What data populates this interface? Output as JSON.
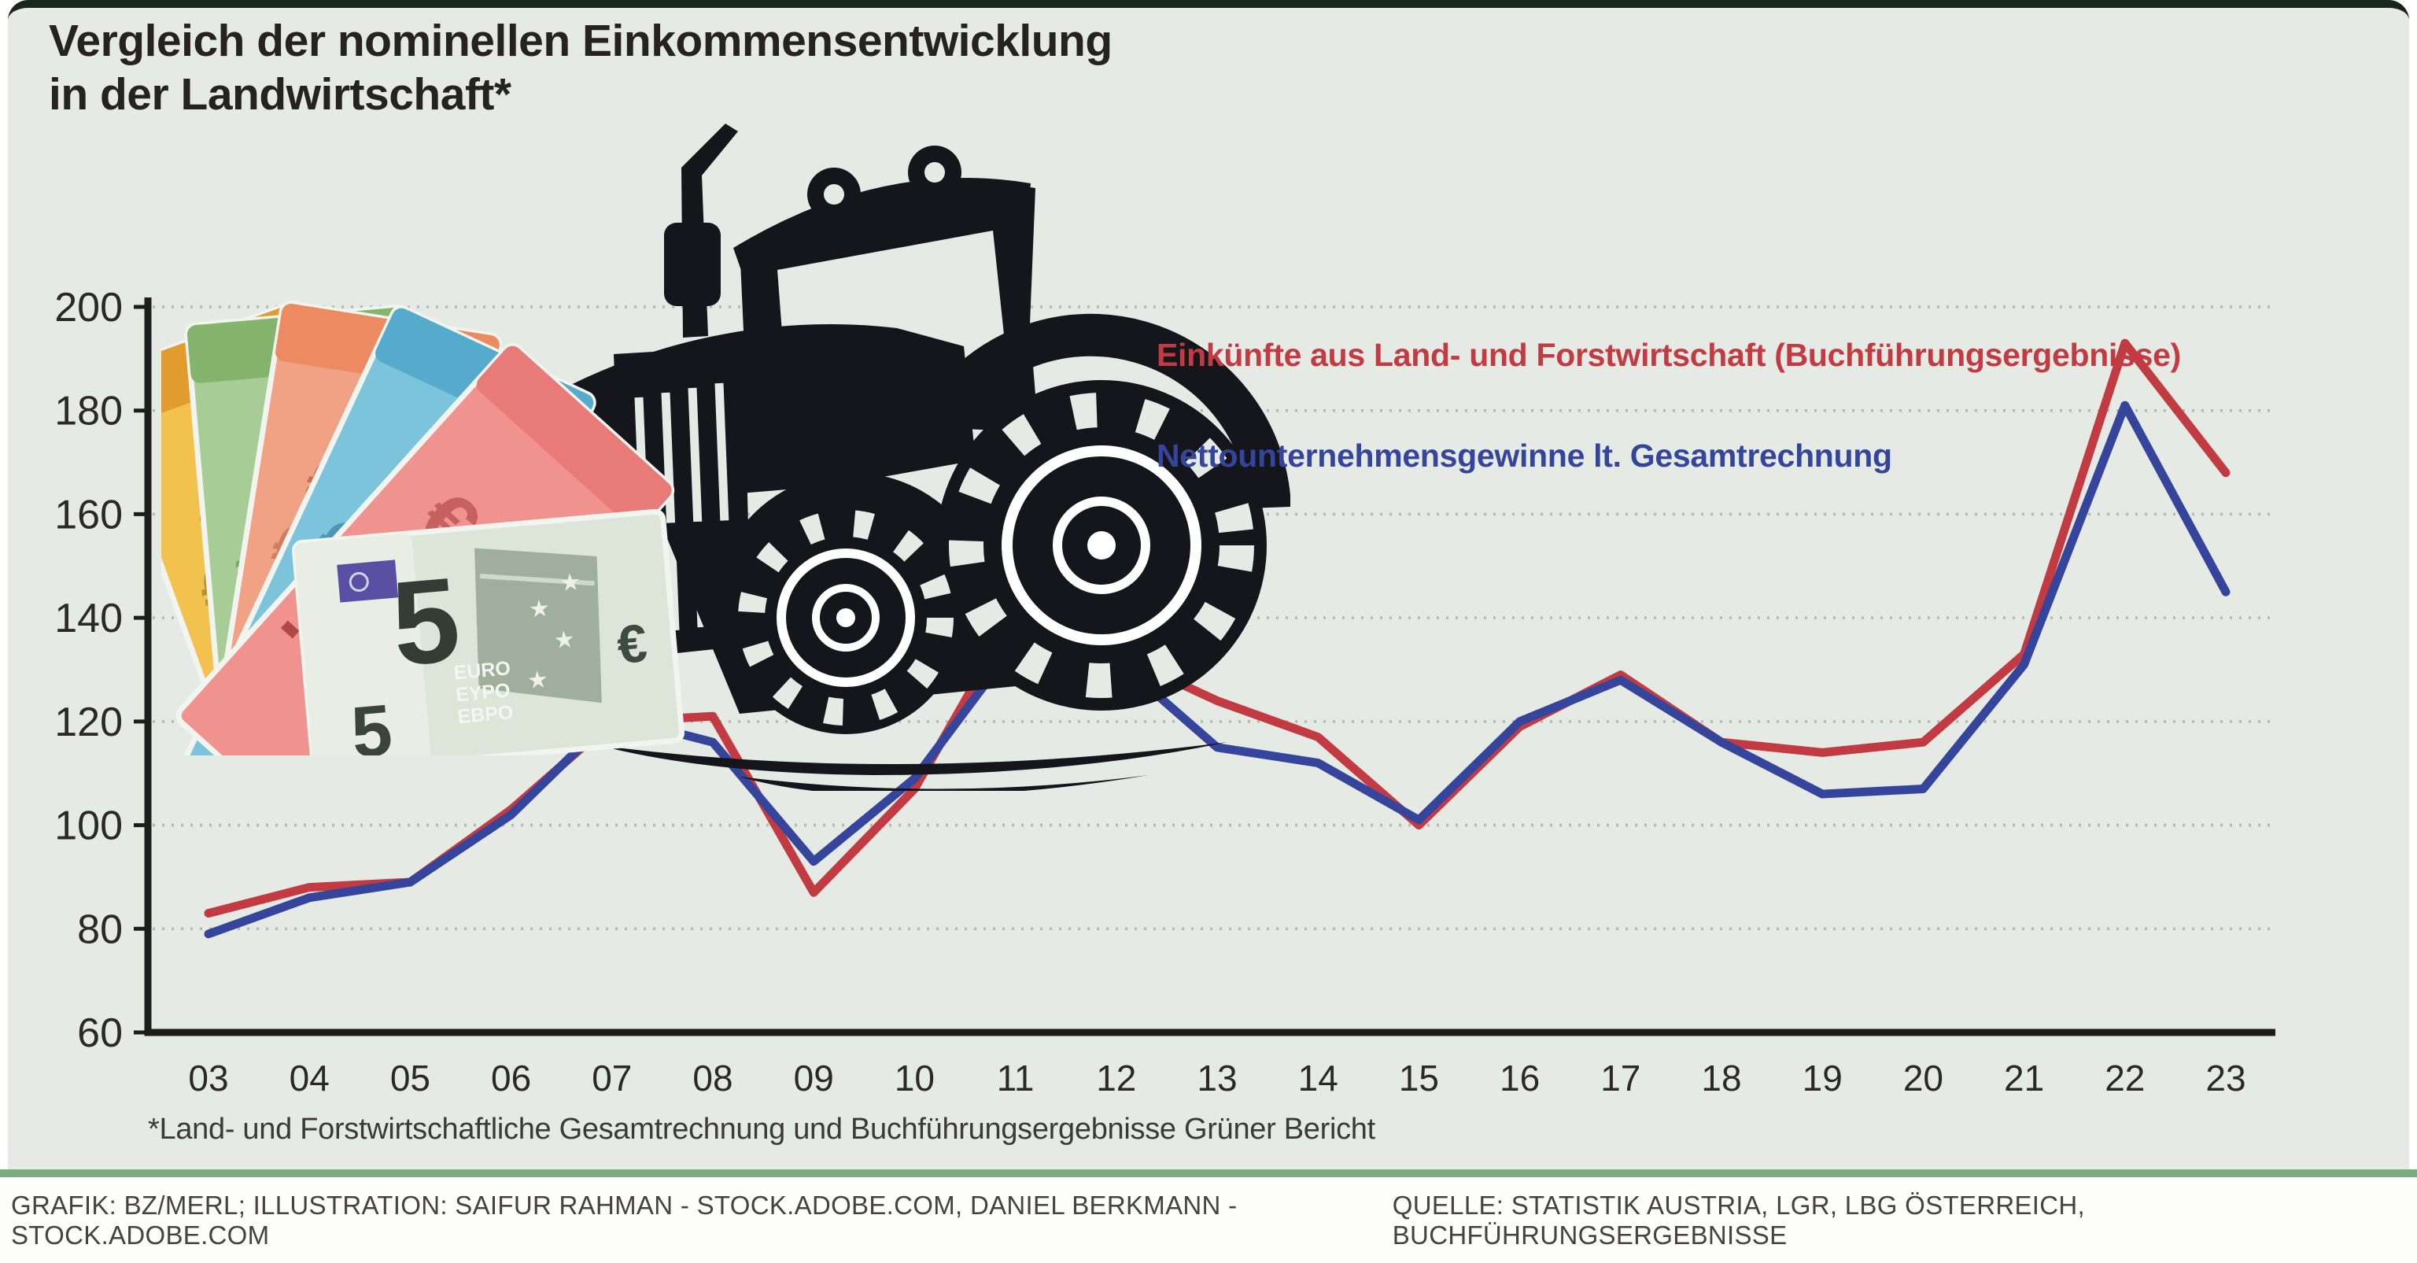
{
  "title": {
    "line1": "Vergleich der nominellen Einkommensentwicklung",
    "line2": "in der Landwirtschaft*"
  },
  "footnote": "*Land- und Forstwirtschaftliche Gesamtrechnung und Buchführungsergebnisse Grüner Bericht",
  "credits": {
    "left": "GRAFIK: BZ/MERL; ILLUSTRATION: SAIFUR RAHMAN - STOCK.ADOBE.COM, DANIEL BERKMANN - STOCK.ADOBE.COM",
    "right": "QUELLE: STATISTIK AUSTRIA, LGR, LBG ÖSTERREICH, BUCHFÜHRUNGSERGEBNISSE"
  },
  "colors": {
    "background": "#e6eae5",
    "series_red": "#c23b42",
    "series_blue": "#35459c",
    "axis": "#1d1d1b",
    "gridline": "#b2b8b2",
    "separator_green": "#7dab80",
    "top_border": "#18261c",
    "tick_text": "#2b2926"
  },
  "illustrations": {
    "tractor-icon": "black tractor silhouette with ground swoosh lines",
    "euro-banknotes-icon": "fan of euro banknotes (yellow, green, orange, blue, red) with 5-euro note in front"
  },
  "chart_data": {
    "type": "line",
    "title": "Vergleich der nominellen Einkommensentwicklung in der Landwirtschaft*",
    "xlabel": "",
    "ylabel": "",
    "grid": "horizontal dotted",
    "legend_position": "upper right",
    "ylim": [
      60,
      200
    ],
    "y_ticks": [
      60,
      80,
      100,
      120,
      140,
      160,
      180,
      200
    ],
    "categories": [
      "03",
      "04",
      "05",
      "06",
      "07",
      "08",
      "09",
      "10",
      "11",
      "12",
      "13",
      "14",
      "15",
      "16",
      "17",
      "18",
      "19",
      "20",
      "21",
      "22",
      "23"
    ],
    "series": [
      {
        "name": "Einkünfte aus Land- und Forstwirtschaft (Buchführungsergebnisse)",
        "color": "#c23b42",
        "values": [
          83,
          88,
          89,
          103,
          120,
          121,
          87,
          107,
          141,
          133,
          124,
          117,
          100,
          119,
          129,
          116,
          114,
          116,
          133,
          193,
          168
        ]
      },
      {
        "name": "Nettounternehmensgewinne lt. Gesamtrechnung",
        "color": "#35459c",
        "values": [
          79,
          86,
          89,
          102,
          121,
          116,
          93,
          109,
          135,
          132,
          115,
          112,
          101,
          120,
          128,
          116,
          106,
          107,
          131,
          181,
          145
        ]
      }
    ]
  }
}
